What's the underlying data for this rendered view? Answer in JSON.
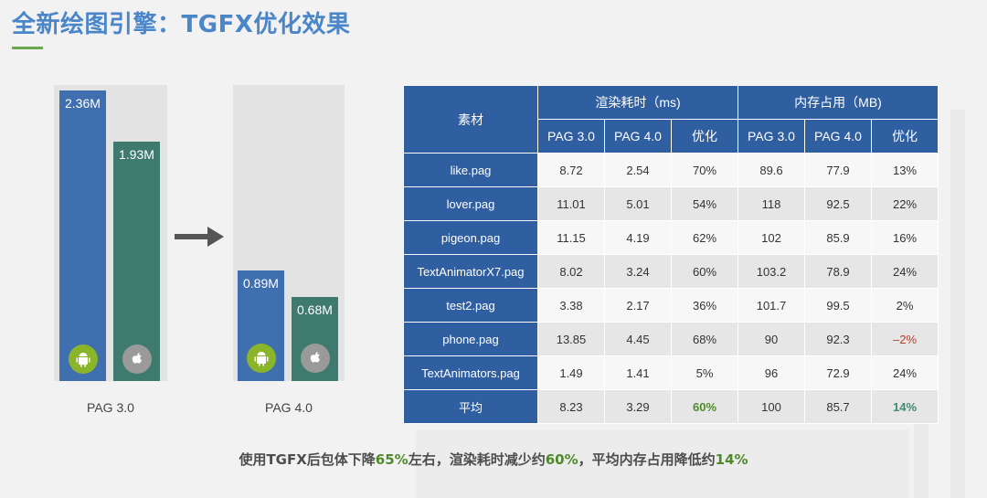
{
  "title": "全新绘图引擎：TGFX优化效果",
  "bars": {
    "pag30": {
      "version_label": "PAG 3.0",
      "android_value": "2.36M",
      "ios_value": "1.93M"
    },
    "pag40": {
      "version_label": "PAG 4.0",
      "android_value": "0.89M",
      "ios_value": "0.68M"
    },
    "colors": {
      "android_bar": "#3f6fae",
      "ios_bar": "#3f7a6e"
    },
    "icons": {
      "android": "android-icon",
      "ios": "apple-icon"
    }
  },
  "table": {
    "header_material": "素材",
    "header_render": "渲染耗时（ms)",
    "header_memory": "内存占用（MB)",
    "subheaders": [
      "PAG 3.0",
      "PAG 4.0",
      "优化",
      "PAG 3.0",
      "PAG 4.0",
      "优化"
    ],
    "rows": [
      {
        "name": "like.pag",
        "r30": "8.72",
        "r40": "2.54",
        "ropt": "70%",
        "m30": "89.6",
        "m40": "77.9",
        "mopt": "13%"
      },
      {
        "name": "lover.pag",
        "r30": "11.01",
        "r40": "5.01",
        "ropt": "54%",
        "m30": "118",
        "m40": "92.5",
        "mopt": "22%"
      },
      {
        "name": "pigeon.pag",
        "r30": "11.15",
        "r40": "4.19",
        "ropt": "62%",
        "m30": "102",
        "m40": "85.9",
        "mopt": "16%"
      },
      {
        "name": "TextAnimatorX7.pag",
        "r30": "8.02",
        "r40": "3.24",
        "ropt": "60%",
        "m30": "103.2",
        "m40": "78.9",
        "mopt": "24%"
      },
      {
        "name": "test2.pag",
        "r30": "3.38",
        "r40": "2.17",
        "ropt": "36%",
        "m30": "101.7",
        "m40": "99.5",
        "mopt": "2%"
      },
      {
        "name": "phone.pag",
        "r30": "13.85",
        "r40": "4.45",
        "ropt": "68%",
        "m30": "90",
        "m40": "92.3",
        "mopt": "–2%"
      },
      {
        "name": "TextAnimators.pag",
        "r30": "1.49",
        "r40": "1.41",
        "ropt": "5%",
        "m30": "96",
        "m40": "72.9",
        "mopt": "24%"
      }
    ],
    "average": {
      "name": "平均",
      "r30": "8.23",
      "r40": "3.29",
      "ropt": "60%",
      "m30": "100",
      "m40": "85.7",
      "mopt": "14%"
    }
  },
  "summary": {
    "p1": "使用TGFX后包体下降",
    "h1": "65%",
    "p2": "左右，渲染耗时减少约",
    "h2": "60%",
    "p3": "，平均内存占用降低约",
    "h3": "14%"
  }
}
